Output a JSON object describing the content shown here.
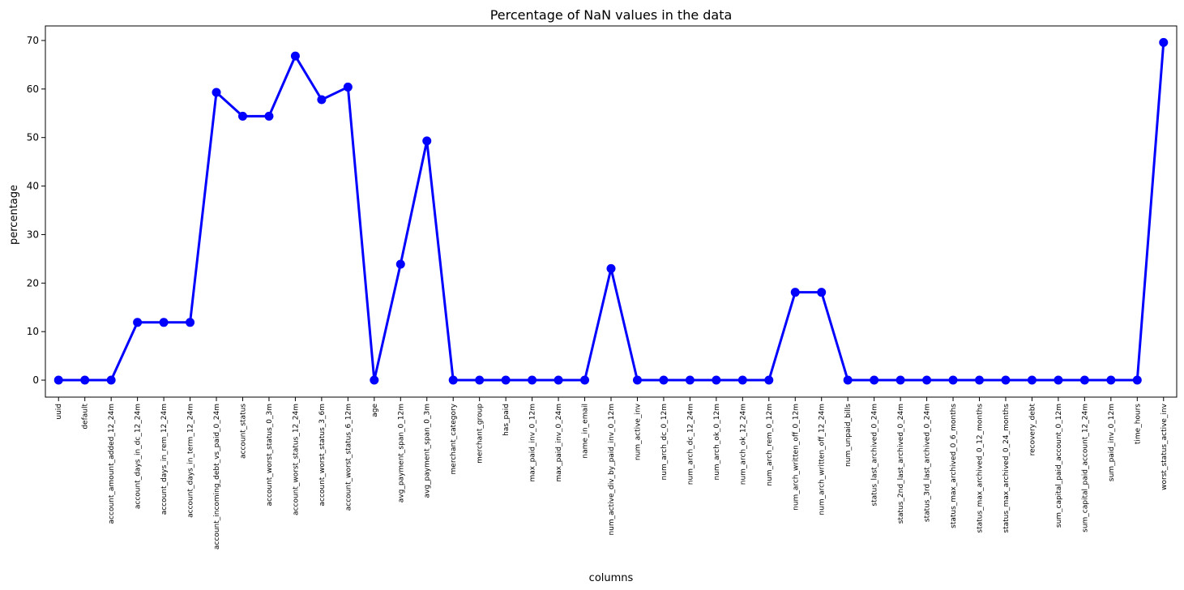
{
  "chart_data": {
    "type": "line",
    "title": "Percentage of NaN values in the data",
    "xlabel": "columns",
    "ylabel": "percentage",
    "ylim": [
      -3.5,
      73
    ],
    "yticks": [
      0,
      10,
      20,
      30,
      40,
      50,
      60,
      70
    ],
    "grid": false,
    "line_color": "#0000ff",
    "categories": [
      "uuid",
      "default",
      "account_amount_added_12_24m",
      "account_days_in_dc_12_24m",
      "account_days_in_rem_12_24m",
      "account_days_in_term_12_24m",
      "account_incoming_debt_vs_paid_0_24m",
      "account_status",
      "account_worst_status_0_3m",
      "account_worst_status_12_24m",
      "account_worst_status_3_6m",
      "account_worst_status_6_12m",
      "age",
      "avg_payment_span_0_12m",
      "avg_payment_span_0_3m",
      "merchant_category",
      "merchant_group",
      "has_paid",
      "max_paid_inv_0_12m",
      "max_paid_inv_0_24m",
      "name_in_email",
      "num_active_div_by_paid_inv_0_12m",
      "num_active_inv",
      "num_arch_dc_0_12m",
      "num_arch_dc_12_24m",
      "num_arch_ok_0_12m",
      "num_arch_ok_12_24m",
      "num_arch_rem_0_12m",
      "num_arch_written_off_0_12m",
      "num_arch_written_off_12_24m",
      "num_unpaid_bills",
      "status_last_archived_0_24m",
      "status_2nd_last_archived_0_24m",
      "status_3rd_last_archived_0_24m",
      "status_max_archived_0_6_months",
      "status_max_archived_0_12_months",
      "status_max_archived_0_24_months",
      "recovery_debt",
      "sum_capital_paid_account_0_12m",
      "sum_capital_paid_account_12_24m",
      "sum_paid_inv_0_12m",
      "time_hours",
      "worst_status_active_inv"
    ],
    "values": [
      0,
      0,
      0,
      11.9,
      11.9,
      11.9,
      59.3,
      54.4,
      54.4,
      66.8,
      57.8,
      60.4,
      0,
      23.9,
      49.3,
      0,
      0,
      0,
      0,
      0,
      0,
      23.0,
      0,
      0,
      0,
      0,
      0,
      0,
      18.1,
      18.1,
      0,
      0,
      0,
      0,
      0,
      0,
      0,
      0,
      0,
      0,
      0,
      0,
      69.6
    ]
  }
}
